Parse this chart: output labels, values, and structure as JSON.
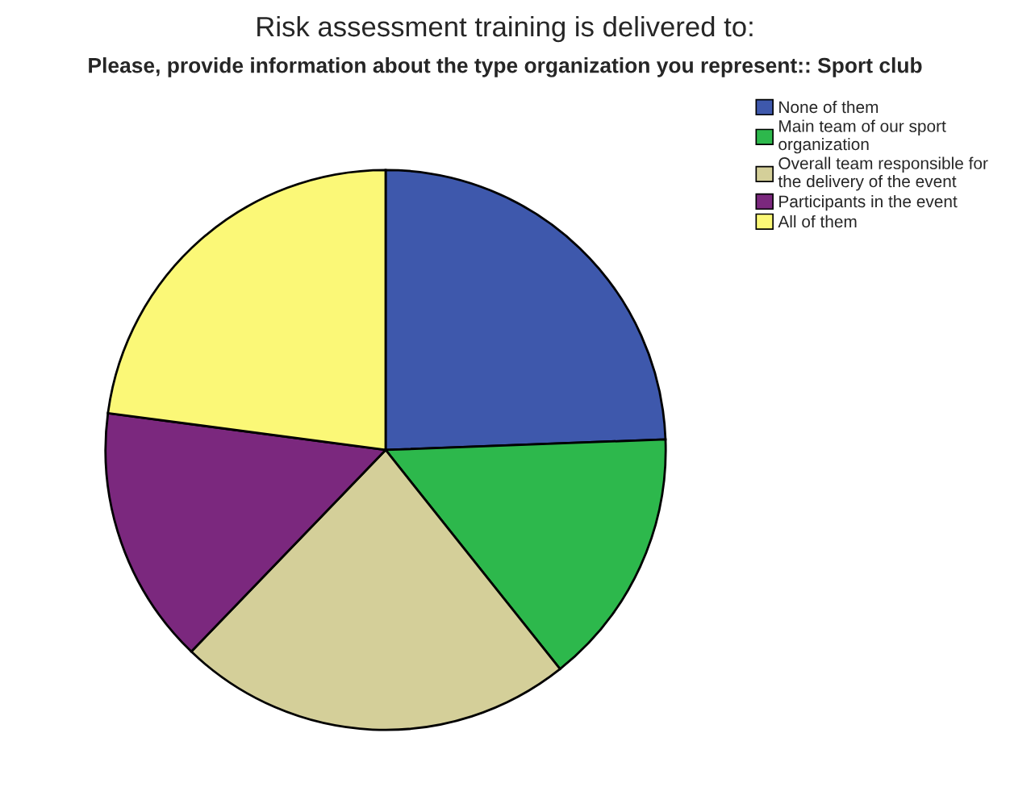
{
  "chart_data": {
    "type": "pie",
    "title": "Risk assessment training is delivered to:",
    "subtitle": "Please, provide information about the type organization you represent:: Sport club",
    "categories": [
      "None of them",
      "Main team of our sport\norganization",
      "Overall team responsible for\nthe delivery of the event",
      "Participants in the event",
      "All of them"
    ],
    "values": [
      24.4,
      14.9,
      22.9,
      14.9,
      22.9
    ],
    "colors": [
      "#3e58ac",
      "#2db84c",
      "#d4cf99",
      "#7b287e",
      "#fbf877"
    ],
    "legend": "top right"
  }
}
